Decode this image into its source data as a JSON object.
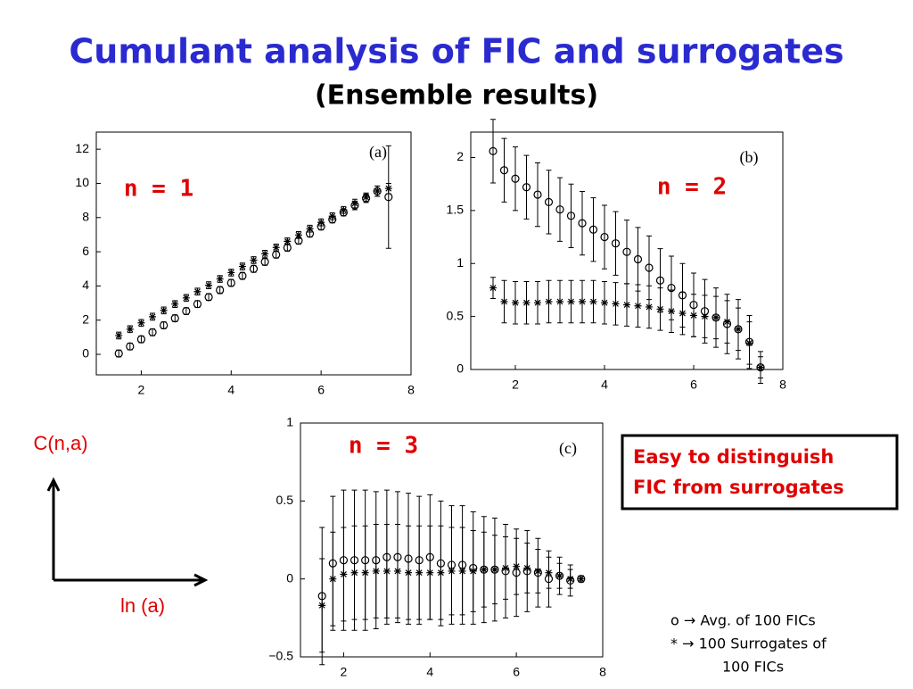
{
  "title": "Cumulant analysis of FIC and surrogates",
  "subtitle": "(Ensemble results)",
  "chart_data": [
    {
      "type": "scatter",
      "panel_label": "(a)",
      "annotation": "n = 1",
      "x": [
        1.5,
        1.75,
        2,
        2.25,
        2.5,
        2.75,
        3,
        3.25,
        3.5,
        3.75,
        4,
        4.25,
        4.5,
        4.75,
        5,
        5.25,
        5.5,
        5.75,
        6,
        6.25,
        6.5,
        6.75,
        7,
        7.25,
        7.5
      ],
      "xlim": [
        1,
        8
      ],
      "xticks": [
        2,
        4,
        6,
        8
      ],
      "ylim": [
        -1.2,
        13
      ],
      "yticks": [
        0,
        2,
        4,
        6,
        8,
        10,
        12
      ],
      "series": [
        {
          "marker": "circle",
          "color": "#000000",
          "values": [
            0.05,
            0.46,
            0.88,
            1.29,
            1.7,
            2.11,
            2.53,
            2.94,
            3.35,
            3.76,
            4.18,
            4.59,
            5.0,
            5.41,
            5.83,
            6.24,
            6.65,
            7.06,
            7.48,
            7.89,
            8.3,
            8.71,
            9.13,
            9.54,
            9.2
          ],
          "errors": [
            0.2,
            0.2,
            0.2,
            0.2,
            0.2,
            0.2,
            0.2,
            0.2,
            0.2,
            0.2,
            0.2,
            0.2,
            0.2,
            0.2,
            0.2,
            0.2,
            0.2,
            0.2,
            0.2,
            0.2,
            0.2,
            0.25,
            0.25,
            0.3,
            3.0
          ]
        },
        {
          "marker": "star",
          "color": "#000000",
          "values": [
            1.1,
            1.47,
            1.84,
            2.2,
            2.57,
            2.94,
            3.3,
            3.67,
            4.04,
            4.41,
            4.78,
            5.14,
            5.51,
            5.88,
            6.25,
            6.61,
            6.98,
            7.35,
            7.72,
            8.08,
            8.45,
            8.82,
            9.19,
            9.55,
            9.7
          ],
          "errors": [
            0.2,
            0.2,
            0.2,
            0.2,
            0.2,
            0.2,
            0.2,
            0.2,
            0.2,
            0.2,
            0.2,
            0.2,
            0.2,
            0.2,
            0.2,
            0.2,
            0.2,
            0.2,
            0.2,
            0.2,
            0.2,
            0.25,
            0.25,
            0.3,
            0.3
          ]
        }
      ]
    },
    {
      "type": "scatter",
      "panel_label": "(b)",
      "annotation": "n = 2",
      "x": [
        1.5,
        1.75,
        2,
        2.25,
        2.5,
        2.75,
        3,
        3.25,
        3.5,
        3.75,
        4,
        4.25,
        4.5,
        4.75,
        5,
        5.25,
        5.5,
        5.75,
        6,
        6.25,
        6.5,
        6.75,
        7,
        7.25,
        7.5
      ],
      "xlim": [
        1,
        8
      ],
      "xticks": [
        2,
        4,
        6,
        8
      ],
      "ylim": [
        0,
        2.24
      ],
      "yticks": [
        0,
        0.5,
        1,
        1.5,
        2
      ],
      "series": [
        {
          "marker": "circle",
          "color": "#000000",
          "values": [
            2.06,
            1.88,
            1.8,
            1.72,
            1.65,
            1.58,
            1.51,
            1.45,
            1.38,
            1.32,
            1.25,
            1.19,
            1.11,
            1.04,
            0.96,
            0.84,
            0.77,
            0.7,
            0.61,
            0.55,
            0.49,
            0.43,
            0.38,
            0.26,
            0.02
          ],
          "errors": [
            0.3,
            0.3,
            0.3,
            0.3,
            0.3,
            0.3,
            0.3,
            0.3,
            0.3,
            0.3,
            0.3,
            0.3,
            0.3,
            0.3,
            0.3,
            0.3,
            0.3,
            0.3,
            0.3,
            0.3,
            0.28,
            0.28,
            0.28,
            0.25,
            0.15
          ]
        },
        {
          "marker": "star",
          "color": "#000000",
          "values": [
            0.77,
            0.64,
            0.63,
            0.63,
            0.63,
            0.64,
            0.64,
            0.64,
            0.64,
            0.64,
            0.63,
            0.62,
            0.61,
            0.6,
            0.59,
            0.57,
            0.55,
            0.53,
            0.51,
            0.5,
            0.49,
            0.45,
            0.38,
            0.25,
            0.02
          ],
          "errors": [
            0.1,
            0.2,
            0.2,
            0.2,
            0.2,
            0.2,
            0.2,
            0.2,
            0.2,
            0.2,
            0.2,
            0.2,
            0.2,
            0.2,
            0.2,
            0.2,
            0.2,
            0.2,
            0.2,
            0.2,
            0.2,
            0.2,
            0.2,
            0.2,
            0.1
          ]
        }
      ]
    },
    {
      "type": "scatter",
      "panel_label": "(c)",
      "annotation": "n = 3",
      "x": [
        1.5,
        1.75,
        2,
        2.25,
        2.5,
        2.75,
        3,
        3.25,
        3.5,
        3.75,
        4,
        4.25,
        4.5,
        4.75,
        5,
        5.25,
        5.5,
        5.75,
        6,
        6.25,
        6.5,
        6.75,
        7,
        7.25,
        7.5
      ],
      "xlim": [
        1,
        8
      ],
      "xticks": [
        2,
        4,
        6,
        8
      ],
      "ylim": [
        -0.5,
        1
      ],
      "yticks": [
        {
          "value": -0.5,
          "label": "−0.5"
        },
        0,
        0.5,
        1
      ],
      "series": [
        {
          "marker": "circle",
          "color": "#000000",
          "values": [
            -0.11,
            0.1,
            0.12,
            0.12,
            0.12,
            0.12,
            0.14,
            0.14,
            0.13,
            0.12,
            0.14,
            0.1,
            0.09,
            0.09,
            0.07,
            0.06,
            0.06,
            0.05,
            0.04,
            0.05,
            0.04,
            0,
            0.02,
            -0.01,
            0
          ],
          "errors": [
            0.44,
            0.43,
            0.45,
            0.45,
            0.45,
            0.44,
            0.43,
            0.42,
            0.42,
            0.41,
            0.4,
            0.4,
            0.38,
            0.38,
            0.36,
            0.34,
            0.33,
            0.3,
            0.28,
            0.26,
            0.22,
            0.18,
            0.12,
            0.1,
            0.02
          ]
        },
        {
          "marker": "star",
          "color": "#000000",
          "values": [
            -0.17,
            0,
            0.03,
            0.04,
            0.04,
            0.05,
            0.05,
            0.05,
            0.04,
            0.04,
            0.04,
            0.04,
            0.05,
            0.05,
            0.05,
            0.06,
            0.06,
            0.07,
            0.08,
            0.07,
            0.05,
            0.04,
            0.02,
            0,
            0
          ],
          "errors": [
            0.3,
            0.3,
            0.3,
            0.3,
            0.3,
            0.3,
            0.3,
            0.3,
            0.3,
            0.3,
            0.3,
            0.3,
            0.28,
            0.28,
            0.26,
            0.24,
            0.22,
            0.2,
            0.18,
            0.16,
            0.14,
            0.1,
            0.08,
            0.06,
            0.02
          ]
        }
      ]
    }
  ],
  "note_box": [
    "Easy to distinguish",
    "FIC from surrogates"
  ],
  "axes_sketch": {
    "y_label": "C(n,a)",
    "x_label": "ln (a)"
  },
  "legend_notes": [
    "o →   Avg. of 100 FICs",
    "* →   100 Surrogates of",
    "100 FICs"
  ]
}
